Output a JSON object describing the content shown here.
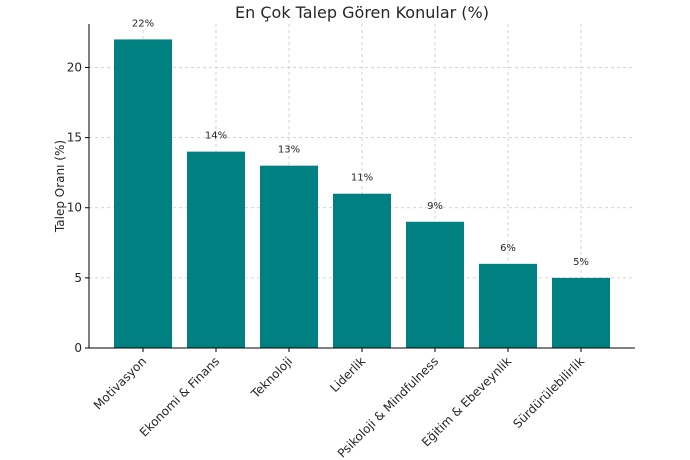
{
  "chart_data": {
    "type": "bar",
    "title": "En Çok Talep Gören Konular (%)",
    "xlabel": "",
    "ylabel": "Talep Oranı (%)",
    "categories": [
      "Motivasyon",
      "Ekonomi & Finans",
      "Teknoloji",
      "Liderlik",
      "Psikoloji & Mindfulness",
      "Eğitim & Ebeveynlik",
      "Sürdürülebilirlik"
    ],
    "values": [
      22,
      14,
      13,
      11,
      9,
      6,
      5
    ],
    "data_labels": [
      "22%",
      "14%",
      "13%",
      "11%",
      "9%",
      "6%",
      "5%"
    ],
    "yticks": [
      0,
      5,
      10,
      15,
      20
    ],
    "ylim": [
      0,
      23.1
    ],
    "grid": true,
    "bar_color": "#008080"
  }
}
